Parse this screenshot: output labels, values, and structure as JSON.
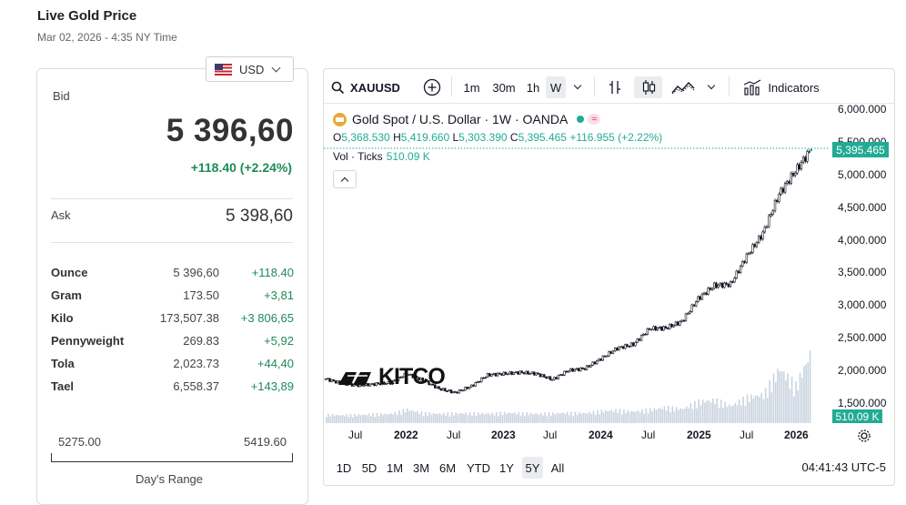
{
  "header": {
    "title": "Live Gold Price",
    "subtitle": "Mar 02, 2026 - 4:35 NY Time"
  },
  "currency": {
    "selected": "USD",
    "flag_icon": "us-flag-icon"
  },
  "quote": {
    "bid_label": "Bid",
    "bid_value": "5 396,60",
    "bid_change": "+118.40 (+2.24%)",
    "ask_label": "Ask",
    "ask_value": "5 398,60"
  },
  "units": [
    {
      "name": "Ounce",
      "price": "5 396,60",
      "change": "+118.40"
    },
    {
      "name": "Gram",
      "price": "173.50",
      "change": "+3,81"
    },
    {
      "name": "Kilo",
      "price": "173,507.38",
      "change": "+3 806,65"
    },
    {
      "name": "Pennyweight",
      "price": "269.83",
      "change": "+5,92"
    },
    {
      "name": "Tola",
      "price": "2,023.73",
      "change": "+44,40"
    },
    {
      "name": "Tael",
      "price": "6,558.37",
      "change": "+143,89"
    }
  ],
  "day_range": {
    "low": "5275.00",
    "high": "5419.60",
    "label": "Day's Range"
  },
  "chart_widget": {
    "symbol": "XAUUSD",
    "intervals": [
      "1m",
      "30m",
      "1h",
      "W"
    ],
    "active_interval": "W",
    "indicators_label": "Indicators",
    "legend": {
      "title": "Gold Spot / U.S. Dollar · 1W · OANDA",
      "wave_badge": "≈",
      "o_label": "O",
      "o": "5,368.530",
      "h_label": "H",
      "h": "5,419.660",
      "l_label": "L",
      "l": "5,303.390",
      "c_label": "C",
      "c": "5,395.465",
      "change": "+116.955 (+2.22%)",
      "vol_label": "Vol · Ticks",
      "vol_value": "510.09 K"
    },
    "price_axis": [
      "6,000.000",
      "5,500.000",
      "5,000.000",
      "4,500.000",
      "4,000.000",
      "3,500.000",
      "3,000.000",
      "2,500.000",
      "2,000.000",
      "1,500.000"
    ],
    "last_price": "5,395.465",
    "vol_tag": "510.09 K",
    "time_axis": [
      {
        "label": "Jul",
        "bold": false
      },
      {
        "label": "2022",
        "bold": true
      },
      {
        "label": "Jul",
        "bold": false
      },
      {
        "label": "2023",
        "bold": true
      },
      {
        "label": "Jul",
        "bold": false
      },
      {
        "label": "2024",
        "bold": true
      },
      {
        "label": "Jul",
        "bold": false
      },
      {
        "label": "2025",
        "bold": true
      },
      {
        "label": "Jul",
        "bold": false
      },
      {
        "label": "2026",
        "bold": true
      }
    ],
    "ranges": [
      "1D",
      "5D",
      "1M",
      "3M",
      "6M",
      "YTD",
      "1Y",
      "5Y",
      "All"
    ],
    "active_range": "5Y",
    "clock": "04:41:43 UTC-5",
    "watermark": "KITCO",
    "colors": {
      "up": "#22ab94",
      "down": "#f23645",
      "line": "#131722",
      "volume": "#c9d3df"
    }
  },
  "chart_data": {
    "type": "line",
    "ylim": [
      1500,
      6000
    ],
    "x": [
      "2021-05",
      "2021-07",
      "2021-09",
      "2021-11",
      "2022-01",
      "2022-03",
      "2022-05",
      "2022-07",
      "2022-09",
      "2022-11",
      "2023-01",
      "2023-03",
      "2023-05",
      "2023-07",
      "2023-09",
      "2023-11",
      "2024-01",
      "2024-03",
      "2024-05",
      "2024-07",
      "2024-09",
      "2024-11",
      "2025-01",
      "2025-03",
      "2025-05",
      "2025-07",
      "2025-09",
      "2025-11",
      "2026-01",
      "2026-02",
      "2026-03"
    ],
    "values": [
      1870,
      1800,
      1770,
      1790,
      1810,
      1950,
      1850,
      1720,
      1660,
      1760,
      1930,
      1950,
      1970,
      1950,
      1860,
      2000,
      2030,
      2180,
      2340,
      2400,
      2640,
      2650,
      2750,
      3100,
      3300,
      3320,
      3750,
      4100,
      4700,
      5050,
      5395
    ],
    "volume": [
      60,
      55,
      58,
      62,
      65,
      95,
      70,
      65,
      68,
      70,
      66,
      72,
      70,
      65,
      68,
      72,
      70,
      85,
      90,
      80,
      95,
      110,
      100,
      150,
      160,
      120,
      180,
      200,
      380,
      260,
      510
    ]
  }
}
